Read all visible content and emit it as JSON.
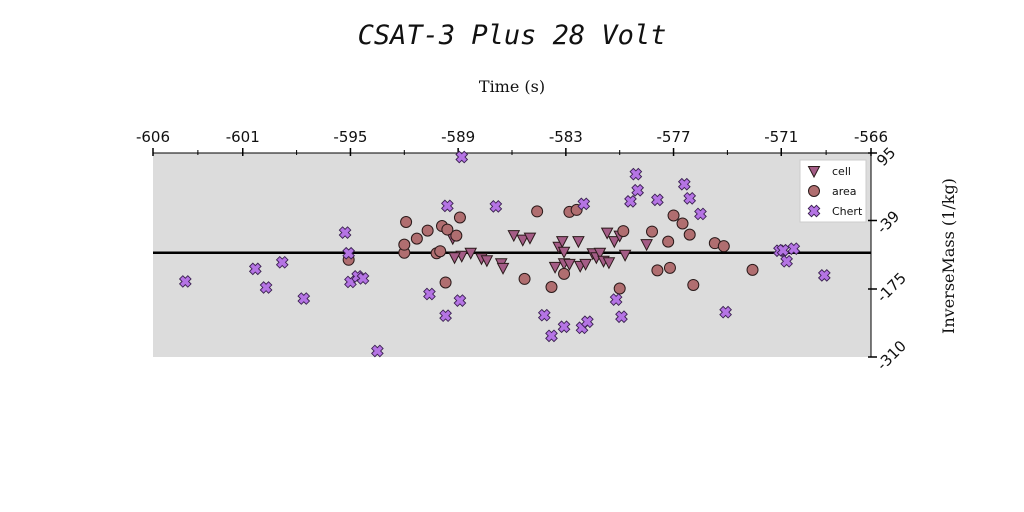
{
  "chart_data": {
    "type": "scatter",
    "title": "CSAT-3 Plus 28 Volt",
    "xlabel": "Time (s)",
    "ylabel": "InverseMass (1/kg)",
    "x_axis_position": "top",
    "y_axis_position": "right",
    "xlim": [
      -606,
      -566
    ],
    "ylim": [
      -310,
      95
    ],
    "xticks": [
      -606,
      -601,
      -595,
      -589,
      -583,
      -577,
      -571,
      -566
    ],
    "yticks": [
      95,
      -39,
      -175,
      -310
    ],
    "reference_line_y": -103,
    "grid": false,
    "legend_position": "top-right",
    "series": [
      {
        "name": "cell",
        "marker": "triangle-down",
        "color": "#a45c86",
        "points": [
          [
            -589.3,
            -74
          ],
          [
            -588.8,
            -109
          ],
          [
            -588.3,
            -103
          ],
          [
            -587.7,
            -114
          ],
          [
            -587.4,
            -118
          ],
          [
            -586.6,
            -124
          ],
          [
            -586.5,
            -133
          ],
          [
            -585.9,
            -68
          ],
          [
            -585.4,
            -77
          ],
          [
            -585.0,
            -73
          ],
          [
            -583.6,
            -131
          ],
          [
            -583.4,
            -91
          ],
          [
            -583.2,
            -80
          ],
          [
            -583.1,
            -101
          ],
          [
            -583.1,
            -124
          ],
          [
            -582.8,
            -125
          ],
          [
            -582.3,
            -80
          ],
          [
            -582.2,
            -129
          ],
          [
            -581.9,
            -125
          ],
          [
            -581.5,
            -104
          ],
          [
            -581.3,
            -112
          ],
          [
            -581.1,
            -103
          ],
          [
            -580.9,
            -119
          ],
          [
            -580.7,
            -63
          ],
          [
            -580.6,
            -122
          ],
          [
            -580.3,
            -80
          ],
          [
            -580.0,
            -69
          ],
          [
            -579.7,
            -107
          ],
          [
            -578.5,
            -86
          ],
          [
            -589.2,
            -112
          ]
        ]
      },
      {
        "name": "area",
        "marker": "circle",
        "color": "#b06e70",
        "points": [
          [
            -595.1,
            -117
          ],
          [
            -592.0,
            -103
          ],
          [
            -592.0,
            -87
          ],
          [
            -591.9,
            -42
          ],
          [
            -591.3,
            -75
          ],
          [
            -590.7,
            -59
          ],
          [
            -590.2,
            -104
          ],
          [
            -590.0,
            -100
          ],
          [
            -589.9,
            -50
          ],
          [
            -589.7,
            -162
          ],
          [
            -589.6,
            -57
          ],
          [
            -589.1,
            -69
          ],
          [
            -588.9,
            -33
          ],
          [
            -585.3,
            -155
          ],
          [
            -584.6,
            -21
          ],
          [
            -583.8,
            -171
          ],
          [
            -583.1,
            -145
          ],
          [
            -582.8,
            -22
          ],
          [
            -582.4,
            -18
          ],
          [
            -580.0,
            -174
          ],
          [
            -579.8,
            -60
          ],
          [
            -578.2,
            -61
          ],
          [
            -577.9,
            -138
          ],
          [
            -577.3,
            -81
          ],
          [
            -577.2,
            -133
          ],
          [
            -577.0,
            -29
          ],
          [
            -576.5,
            -45
          ],
          [
            -576.1,
            -67
          ],
          [
            -575.9,
            -167
          ],
          [
            -574.7,
            -84
          ],
          [
            -574.2,
            -90
          ],
          [
            -572.6,
            -137
          ]
        ]
      },
      {
        "name": "Chert",
        "marker": "x",
        "color": "#b574e4",
        "points": [
          [
            -604.2,
            -160
          ],
          [
            -600.3,
            -135
          ],
          [
            -599.7,
            -172
          ],
          [
            -598.8,
            -122
          ],
          [
            -597.6,
            -194
          ],
          [
            -595.3,
            -63
          ],
          [
            -595.1,
            -104
          ],
          [
            -595.0,
            -161
          ],
          [
            -594.6,
            -150
          ],
          [
            -594.3,
            -154
          ],
          [
            -593.5,
            -298
          ],
          [
            -590.6,
            -185
          ],
          [
            -589.7,
            -228
          ],
          [
            -589.6,
            -10
          ],
          [
            -588.9,
            -198
          ],
          [
            -588.8,
            87
          ],
          [
            -586.9,
            -11
          ],
          [
            -584.2,
            -227
          ],
          [
            -583.8,
            -268
          ],
          [
            -583.1,
            -250
          ],
          [
            -582.1,
            -252
          ],
          [
            -582.0,
            -6
          ],
          [
            -581.8,
            -240
          ],
          [
            -580.2,
            -196
          ],
          [
            -579.9,
            -230
          ],
          [
            -579.4,
            -1
          ],
          [
            -579.1,
            53
          ],
          [
            -579.0,
            21
          ],
          [
            -577.9,
            2
          ],
          [
            -576.4,
            33
          ],
          [
            -576.1,
            5
          ],
          [
            -575.5,
            -26
          ],
          [
            -574.1,
            -221
          ],
          [
            -571.1,
            -99
          ],
          [
            -570.9,
            -98
          ],
          [
            -570.7,
            -120
          ],
          [
            -570.3,
            -95
          ],
          [
            -568.6,
            -148
          ]
        ]
      }
    ]
  }
}
